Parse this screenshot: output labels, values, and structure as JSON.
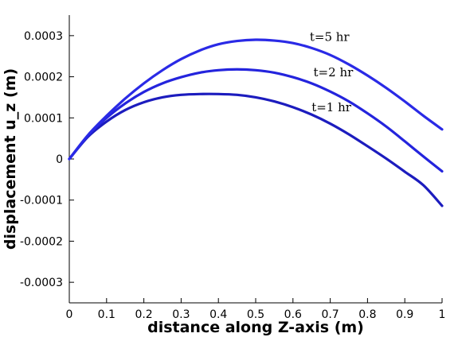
{
  "chart_data": {
    "type": "line",
    "title": "",
    "xlabel": "distance along Z-axis (m)",
    "ylabel": "displacement u_z (m)",
    "xlim": [
      0,
      1
    ],
    "ylim": [
      -0.00035,
      0.00035
    ],
    "grid": false,
    "legend": "none",
    "x_ticks": [
      0,
      0.1,
      0.2,
      0.3,
      0.4,
      0.5,
      0.6,
      0.7,
      0.8,
      0.9,
      1
    ],
    "x_tick_labels": [
      "0",
      "0.1",
      "0.2",
      "0.3",
      "0.4",
      "0.5",
      "0.6",
      "0.7",
      "0.8",
      "0.9",
      "1"
    ],
    "y_ticks": [
      -0.0003,
      -0.0002,
      -0.0001,
      0,
      0.0001,
      0.0002,
      0.0003
    ],
    "y_tick_labels": [
      "-0.0003",
      "-0.0002",
      "-0.0001",
      "0",
      "0.0001",
      "0.0002",
      "0.0003"
    ],
    "x": [
      0,
      0.05,
      0.1,
      0.15,
      0.2,
      0.25,
      0.3,
      0.35,
      0.4,
      0.45,
      0.5,
      0.55,
      0.6,
      0.65,
      0.7,
      0.75,
      0.8,
      0.85,
      0.9,
      0.95,
      1
    ],
    "series": [
      {
        "name": "t=1 hr",
        "color": "#1c1cbe",
        "label_at": [
          0.65,
          0.000116
        ],
        "values": [
          0,
          5.4e-05,
          9.1e-05,
          0.000119,
          0.000138,
          0.00015,
          0.000156,
          0.000158,
          0.000158,
          0.000156,
          0.00015,
          0.00014,
          0.000126,
          0.000108,
          8.6e-05,
          6e-05,
          3.1e-05,
          1e-06,
          -3.1e-05,
          -6.4e-05,
          -0.000114
        ]
      },
      {
        "name": "t=2 hr",
        "color": "#2424dd",
        "label_at": [
          0.655,
          0.000201
        ],
        "values": [
          0,
          5.7e-05,
          0.0001,
          0.000135,
          0.000163,
          0.000184,
          0.000199,
          0.00021,
          0.000216,
          0.000218,
          0.000216,
          0.00021,
          0.000199,
          0.000184,
          0.000164,
          0.00014,
          0.000111,
          7.9e-05,
          4.3e-05,
          6e-06,
          -3e-05
        ]
      },
      {
        "name": "t=5 hr",
        "color": "#2a2ae6",
        "label_at": [
          0.645,
          0.000287
        ],
        "values": [
          0,
          5.8e-05,
          0.000105,
          0.000147,
          0.000184,
          0.000216,
          0.000243,
          0.000264,
          0.000279,
          0.000287,
          0.00029,
          0.000288,
          0.000282,
          0.00027,
          0.000253,
          0.00023,
          0.000203,
          0.000173,
          0.00014,
          0.000105,
          7.2e-05
        ]
      }
    ]
  }
}
